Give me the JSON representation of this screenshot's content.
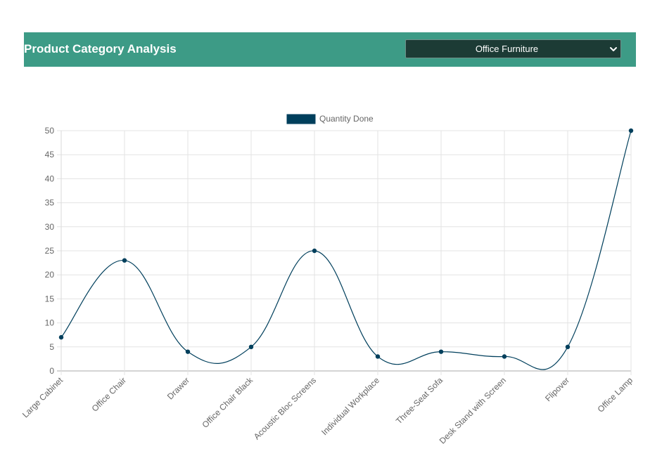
{
  "header": {
    "title": "Product Category Analysis",
    "category_select": {
      "selected": "Office Furniture"
    }
  },
  "colors": {
    "header_bg": "#3d9b86",
    "select_bg": "#1c3b35",
    "series": "#003f5c"
  },
  "chart_data": {
    "type": "line",
    "title": "",
    "xlabel": "",
    "ylabel": "",
    "categories": [
      "Large Cabinet",
      "Office Chair",
      "Drawer",
      "Office Chair Black",
      "Acoustic Bloc Screens",
      "Individual Workplace",
      "Three-Seat Sofa",
      "Desk Stand with Screen",
      "Flipover",
      "Office Lamp"
    ],
    "series": [
      {
        "name": "Quantity Done",
        "values": [
          7,
          23,
          4,
          5,
          25,
          3,
          4,
          3,
          5,
          50
        ]
      }
    ],
    "ylim": [
      0,
      50
    ],
    "yticks": [
      0,
      5,
      10,
      15,
      20,
      25,
      30,
      35,
      40,
      45,
      50
    ],
    "grid": true,
    "smooth": true,
    "legend": "top-center"
  }
}
